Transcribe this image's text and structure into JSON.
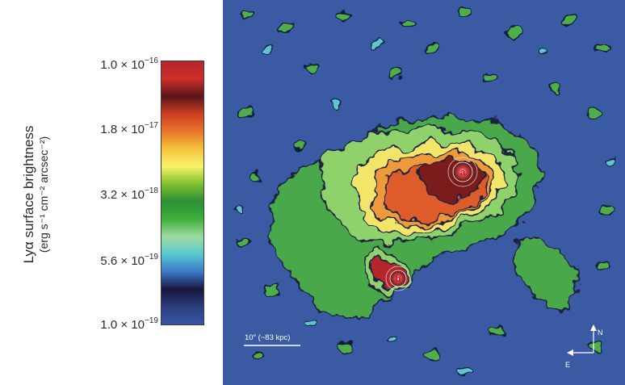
{
  "colorbar": {
    "title_line1": "Lyα surface brightness",
    "title_line2": "(erg s⁻¹ cm⁻² arcsec⁻²)",
    "scale": "log",
    "stops": [
      "#b3262e",
      "#cf2f2a",
      "#57151a",
      "#cf3e23",
      "#e7762b",
      "#f3c43d",
      "#f8f36a",
      "#7cbf2e",
      "#2c8f36",
      "#3fb03c",
      "#9fdba0",
      "#57c9d3",
      "#3c79c7",
      "#17163e",
      "#2b3f7e",
      "#3657a6"
    ],
    "ticks": [
      {
        "value": 1e-16,
        "base": "1.0 × 10",
        "exp": "−16"
      },
      {
        "value": 1.8e-17,
        "base": "1.8 × 10",
        "exp": "−17"
      },
      {
        "value": 3.2e-18,
        "base": "3.2 × 10",
        "exp": "−18"
      },
      {
        "value": 5.6e-19,
        "base": "5.6 × 10",
        "exp": "−19"
      },
      {
        "value": 1e-19,
        "base": "1.0 × 10",
        "exp": "−19"
      }
    ]
  },
  "image": {
    "background_color": "#3a5aa3",
    "sources": [
      {
        "id": "source-a",
        "label": "a"
      },
      {
        "id": "source-b",
        "label": "b"
      }
    ],
    "scale_bar": {
      "label": "10″ (~83 kpc)"
    },
    "compass": {
      "north": "N",
      "east": "E"
    }
  }
}
